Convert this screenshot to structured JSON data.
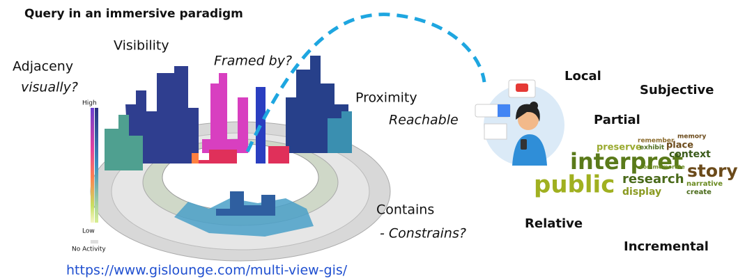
{
  "title": "Query in an immersive paradigm",
  "labels": {
    "visibility": "Visibility",
    "adjacency": "Adjaceny",
    "adjacency_note": "visually?",
    "framed": "Framed by?",
    "proximity": "Proximity",
    "proximity_note": "Reachable",
    "contains": "Contains",
    "contains_note": "- Constrains?"
  },
  "legend": {
    "high": "High",
    "low": "Low",
    "none": "No Activity"
  },
  "link": "https://www.gislounge.com/multi-view-gis/",
  "properties": [
    "Local",
    "Subjective",
    "Partial",
    "Relative",
    "Incremental"
  ],
  "word_cloud": [
    "interpret",
    "public",
    "story",
    "research",
    "context",
    "display",
    "place",
    "preserve",
    "narrative",
    "create",
    "memory",
    "exhibit",
    "remember",
    "commemorate"
  ]
}
